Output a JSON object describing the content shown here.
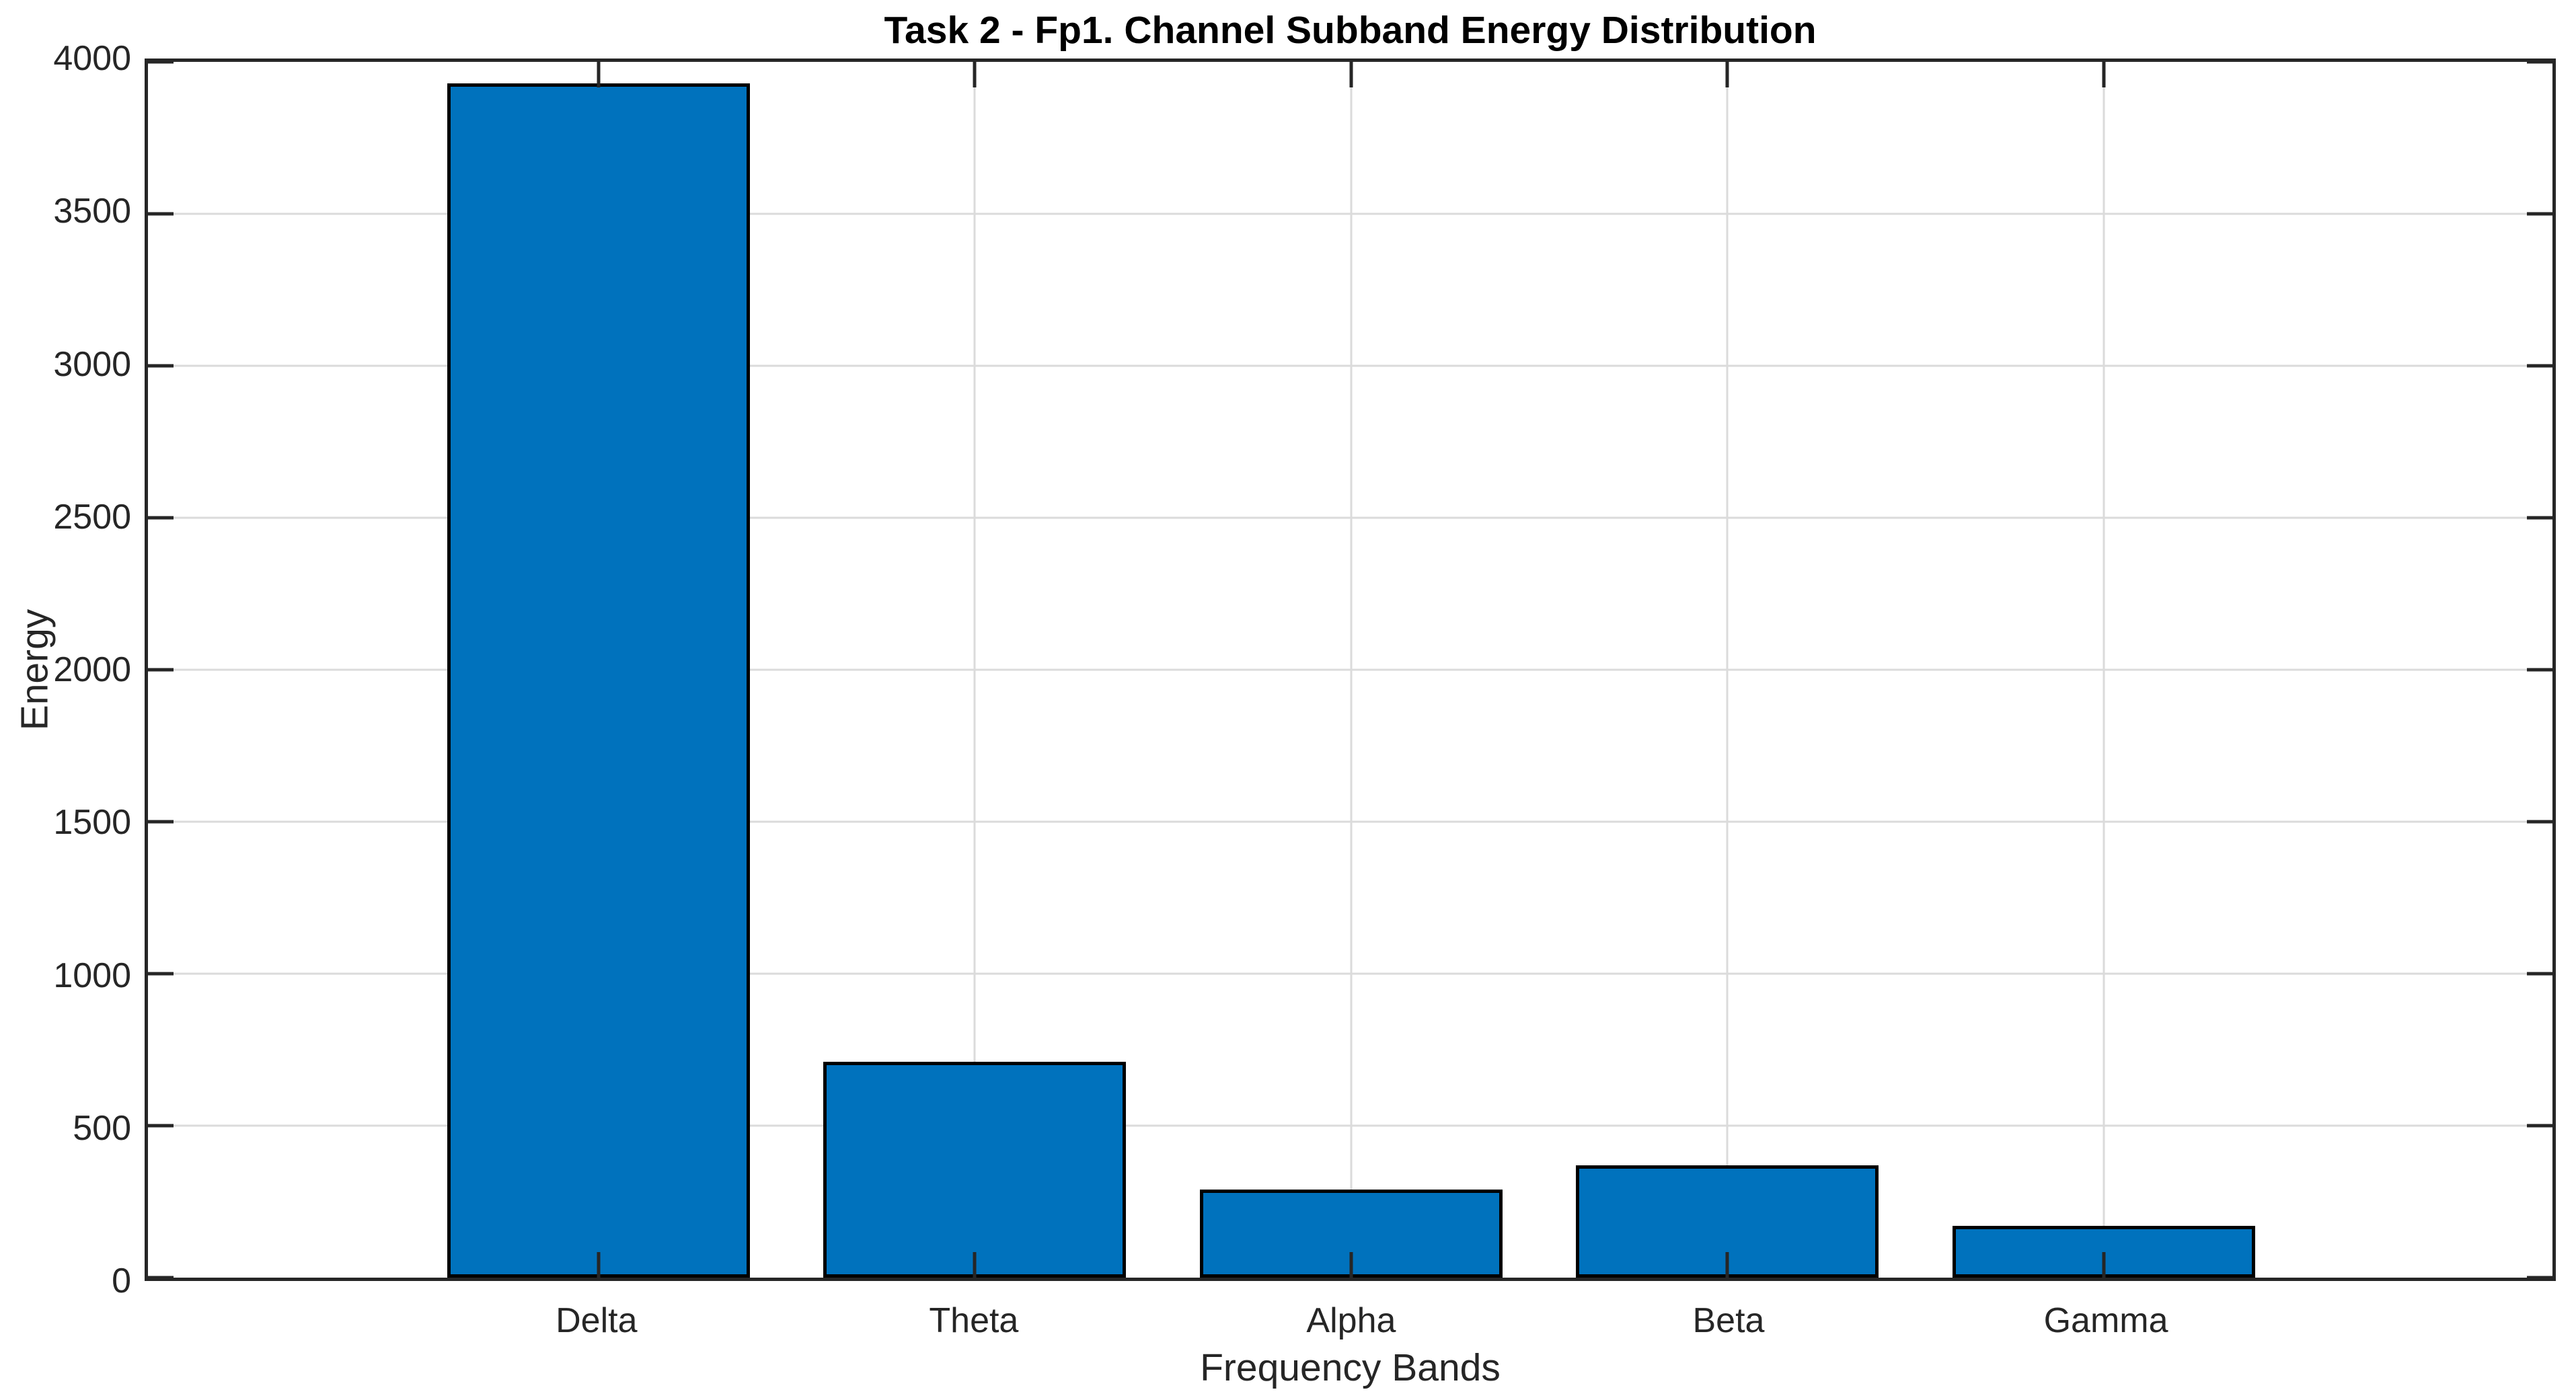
{
  "figure": {
    "background_color": "#ffffff"
  },
  "chart_data": {
    "type": "bar",
    "title": "Task 2 - Fp1. Channel Subband Energy Distribution",
    "xlabel": "Frequency Bands",
    "ylabel": "Energy",
    "categories": [
      "Delta",
      "Theta",
      "Alpha",
      "Beta",
      "Gamma"
    ],
    "values": [
      3930,
      710,
      290,
      370,
      170
    ],
    "ylim": [
      0,
      4000
    ],
    "yticks": [
      0,
      500,
      1000,
      1500,
      2000,
      2500,
      3000,
      3500,
      4000
    ],
    "ytick_labels": [
      "0",
      "500",
      "1000",
      "1500",
      "2000",
      "2500",
      "3000",
      "3500",
      "4000"
    ],
    "grid": true,
    "legend": "none",
    "bar_width_fraction": 0.8,
    "colors": {
      "bar_fill": "#0072BD",
      "bar_edge": "#000000",
      "axis": "#262626",
      "grid": "#dbdbdb",
      "title_text": "#000000",
      "label_text": "#262626"
    }
  }
}
